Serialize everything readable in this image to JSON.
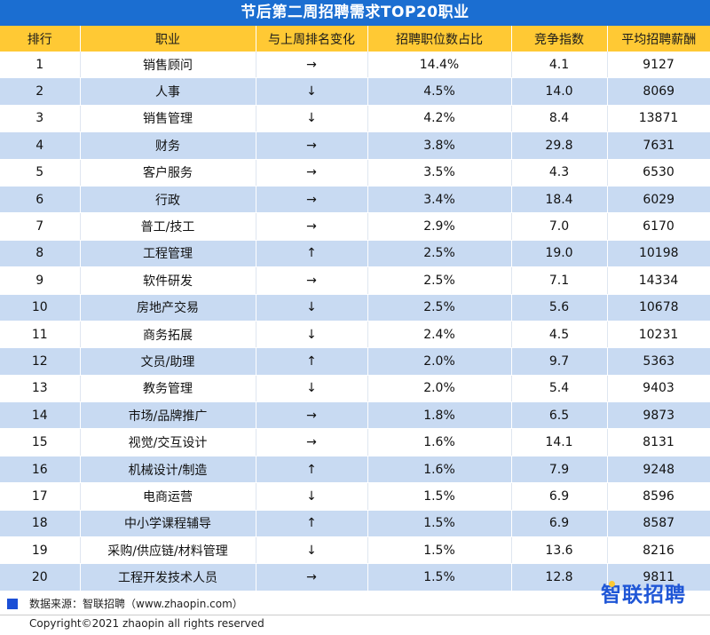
{
  "title": "节后第二周招聘需求TOP20职业",
  "columns": [
    "排行",
    "职业",
    "与上周排名变化",
    "招聘职位数占比",
    "竞争指数",
    "平均招聘薪酬"
  ],
  "rows": [
    [
      "1",
      "销售顾问",
      "→",
      "14.4%",
      "4.1",
      "9127"
    ],
    [
      "2",
      "人事",
      "↓",
      "4.5%",
      "14.0",
      "8069"
    ],
    [
      "3",
      "销售管理",
      "↓",
      "4.2%",
      "8.4",
      "13871"
    ],
    [
      "4",
      "财务",
      "→",
      "3.8%",
      "29.8",
      "7631"
    ],
    [
      "5",
      "客户服务",
      "→",
      "3.5%",
      "4.3",
      "6530"
    ],
    [
      "6",
      "行政",
      "→",
      "3.4%",
      "18.4",
      "6029"
    ],
    [
      "7",
      "普工/技工",
      "→",
      "2.9%",
      "7.0",
      "6170"
    ],
    [
      "8",
      "工程管理",
      "↑",
      "2.5%",
      "19.0",
      "10198"
    ],
    [
      "9",
      "软件研发",
      "→",
      "2.5%",
      "7.1",
      "14334"
    ],
    [
      "10",
      "房地产交易",
      "↓",
      "2.5%",
      "5.6",
      "10678"
    ],
    [
      "11",
      "商务拓展",
      "↓",
      "2.4%",
      "4.5",
      "10231"
    ],
    [
      "12",
      "文员/助理",
      "↑",
      "2.0%",
      "9.7",
      "5363"
    ],
    [
      "13",
      "教务管理",
      "↓",
      "2.0%",
      "5.4",
      "9403"
    ],
    [
      "14",
      "市场/品牌推广",
      "→",
      "1.8%",
      "6.5",
      "9873"
    ],
    [
      "15",
      "视觉/交互设计",
      "→",
      "1.6%",
      "14.1",
      "8131"
    ],
    [
      "16",
      "机械设计/制造",
      "↑",
      "1.6%",
      "7.9",
      "9248"
    ],
    [
      "17",
      "电商运营",
      "↓",
      "1.5%",
      "6.9",
      "8596"
    ],
    [
      "18",
      "中小学课程辅导",
      "↑",
      "1.5%",
      "6.9",
      "8587"
    ],
    [
      "19",
      "采购/供应链/材料管理",
      "↓",
      "1.5%",
      "13.6",
      "8216"
    ],
    [
      "20",
      "工程开发技术人员",
      "→",
      "1.5%",
      "12.8",
      "9811"
    ]
  ],
  "footer": {
    "source": "数据来源：智联招聘（www.zhaopin.com）",
    "logo_first": "智",
    "logo_rest": "联招聘",
    "copyright": "Copyright©2021 zhaopin all rights reserved"
  },
  "colors": {
    "title_bg": "#1b6ed1",
    "header_bg": "#ffc934",
    "stripe": "#c8daf2",
    "logo": "#1f56d6"
  }
}
